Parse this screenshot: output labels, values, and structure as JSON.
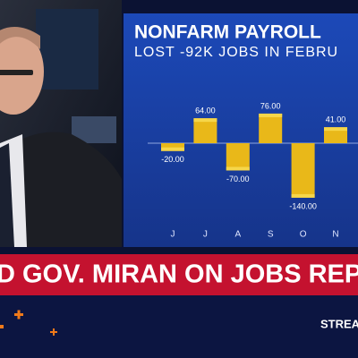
{
  "chart_data": {
    "type": "bar",
    "title": "NONFARM PAYROLL",
    "subtitle": "LOST -92K JOBS IN FEBRU",
    "categories": [
      "J",
      "J",
      "A",
      "S",
      "O",
      "N"
    ],
    "values": [
      -20,
      64,
      -70,
      76,
      -140,
      41
    ],
    "value_labels": [
      "-20.00",
      "64.00",
      "-70.00",
      "76.00",
      "-140.00",
      "41.00"
    ],
    "color": "#e9b819"
  },
  "banner": {
    "headline": "D GOV. MIRAN ON JOBS REP",
    "ticker": "STREA"
  }
}
